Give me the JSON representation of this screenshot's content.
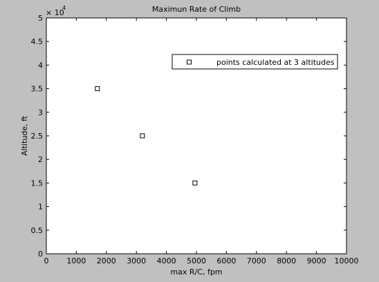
{
  "chart_data": {
    "type": "scatter",
    "title": "Maximun Rate of Climb",
    "xlabel": "max R/C, fpm",
    "ylabel": "Altitude, ft",
    "xlim": [
      0,
      10000
    ],
    "ylim": [
      0,
      5
    ],
    "y_multiplier": {
      "base": "× 10",
      "exponent": "4"
    },
    "x_ticks": [
      0,
      1000,
      2000,
      3000,
      4000,
      5000,
      6000,
      7000,
      8000,
      9000,
      10000
    ],
    "x_tick_labels": [
      "0",
      "1000",
      "2000",
      "3000",
      "4000",
      "5000",
      "6000",
      "7000",
      "8000",
      "9000",
      "10000"
    ],
    "y_ticks": [
      0,
      0.5,
      1,
      1.5,
      2,
      2.5,
      3,
      3.5,
      4,
      4.5,
      5
    ],
    "y_tick_labels": [
      "0",
      "0.5",
      "1",
      "1.5",
      "2",
      "2.5",
      "3",
      "3.5",
      "4",
      "4.5",
      "5"
    ],
    "grid": false,
    "legend_position": "top-right",
    "series": [
      {
        "name": "points calculated at 3 altitudes",
        "marker": "square",
        "x": [
          1700,
          3200,
          4950
        ],
        "y": [
          3.5,
          2.5,
          1.5
        ]
      }
    ]
  },
  "colors": {
    "figure_background": "#c0c0c0",
    "plot_background": "#ffffff",
    "axis": "#000000",
    "marker": "#000000"
  }
}
